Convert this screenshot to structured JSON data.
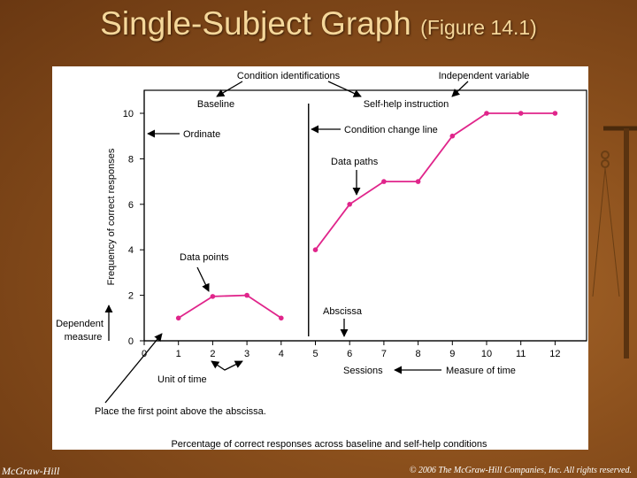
{
  "slide": {
    "title": "Single-Subject Graph",
    "subtitle": "(Figure 14.1)",
    "footer_left": "McGraw-Hill",
    "footer_right": "© 2006 The McGraw-Hill Companies, Inc. All rights reserved.",
    "colors": {
      "background": "#8a4f1c",
      "title": "#f5d79a",
      "series": "#e0258b"
    }
  },
  "chart_data": {
    "type": "line",
    "caption": "Percentage of correct responses across baseline and self-help conditions",
    "xlabel": "Sessions",
    "ylabel": "Frequency of correct responses",
    "xlim": [
      0,
      13
    ],
    "ylim": [
      0,
      11
    ],
    "x_ticks": [
      0,
      1,
      2,
      3,
      4,
      5,
      6,
      7,
      8,
      9,
      10,
      11,
      12
    ],
    "y_ticks": [
      0,
      2,
      4,
      6,
      8,
      10
    ],
    "condition_change_x": 4.8,
    "conditions": [
      "Baseline",
      "Self-help instruction"
    ],
    "series": [
      {
        "x": [
          1,
          2,
          3,
          4
        ],
        "values": [
          1,
          1.95,
          2,
          1
        ]
      },
      {
        "x": [
          5,
          6,
          7,
          8,
          9,
          10,
          11,
          12
        ],
        "values": [
          4,
          6,
          7,
          7,
          9,
          10,
          10,
          10
        ]
      }
    ],
    "annotations": {
      "condition_identifications": "Condition identifications",
      "independent_variable": "Independent variable",
      "ordinate": "Ordinate",
      "condition_change_line": "Condition change line",
      "data_paths": "Data paths",
      "data_points": "Data points",
      "abscissa": "Abscissa",
      "dependent_measure_1": "Dependent",
      "dependent_measure_2": "measure",
      "unit_of_time": "Unit of time",
      "measure_of_time": "Measure of time",
      "first_point_note": "Place the first point above the abscissa."
    }
  }
}
